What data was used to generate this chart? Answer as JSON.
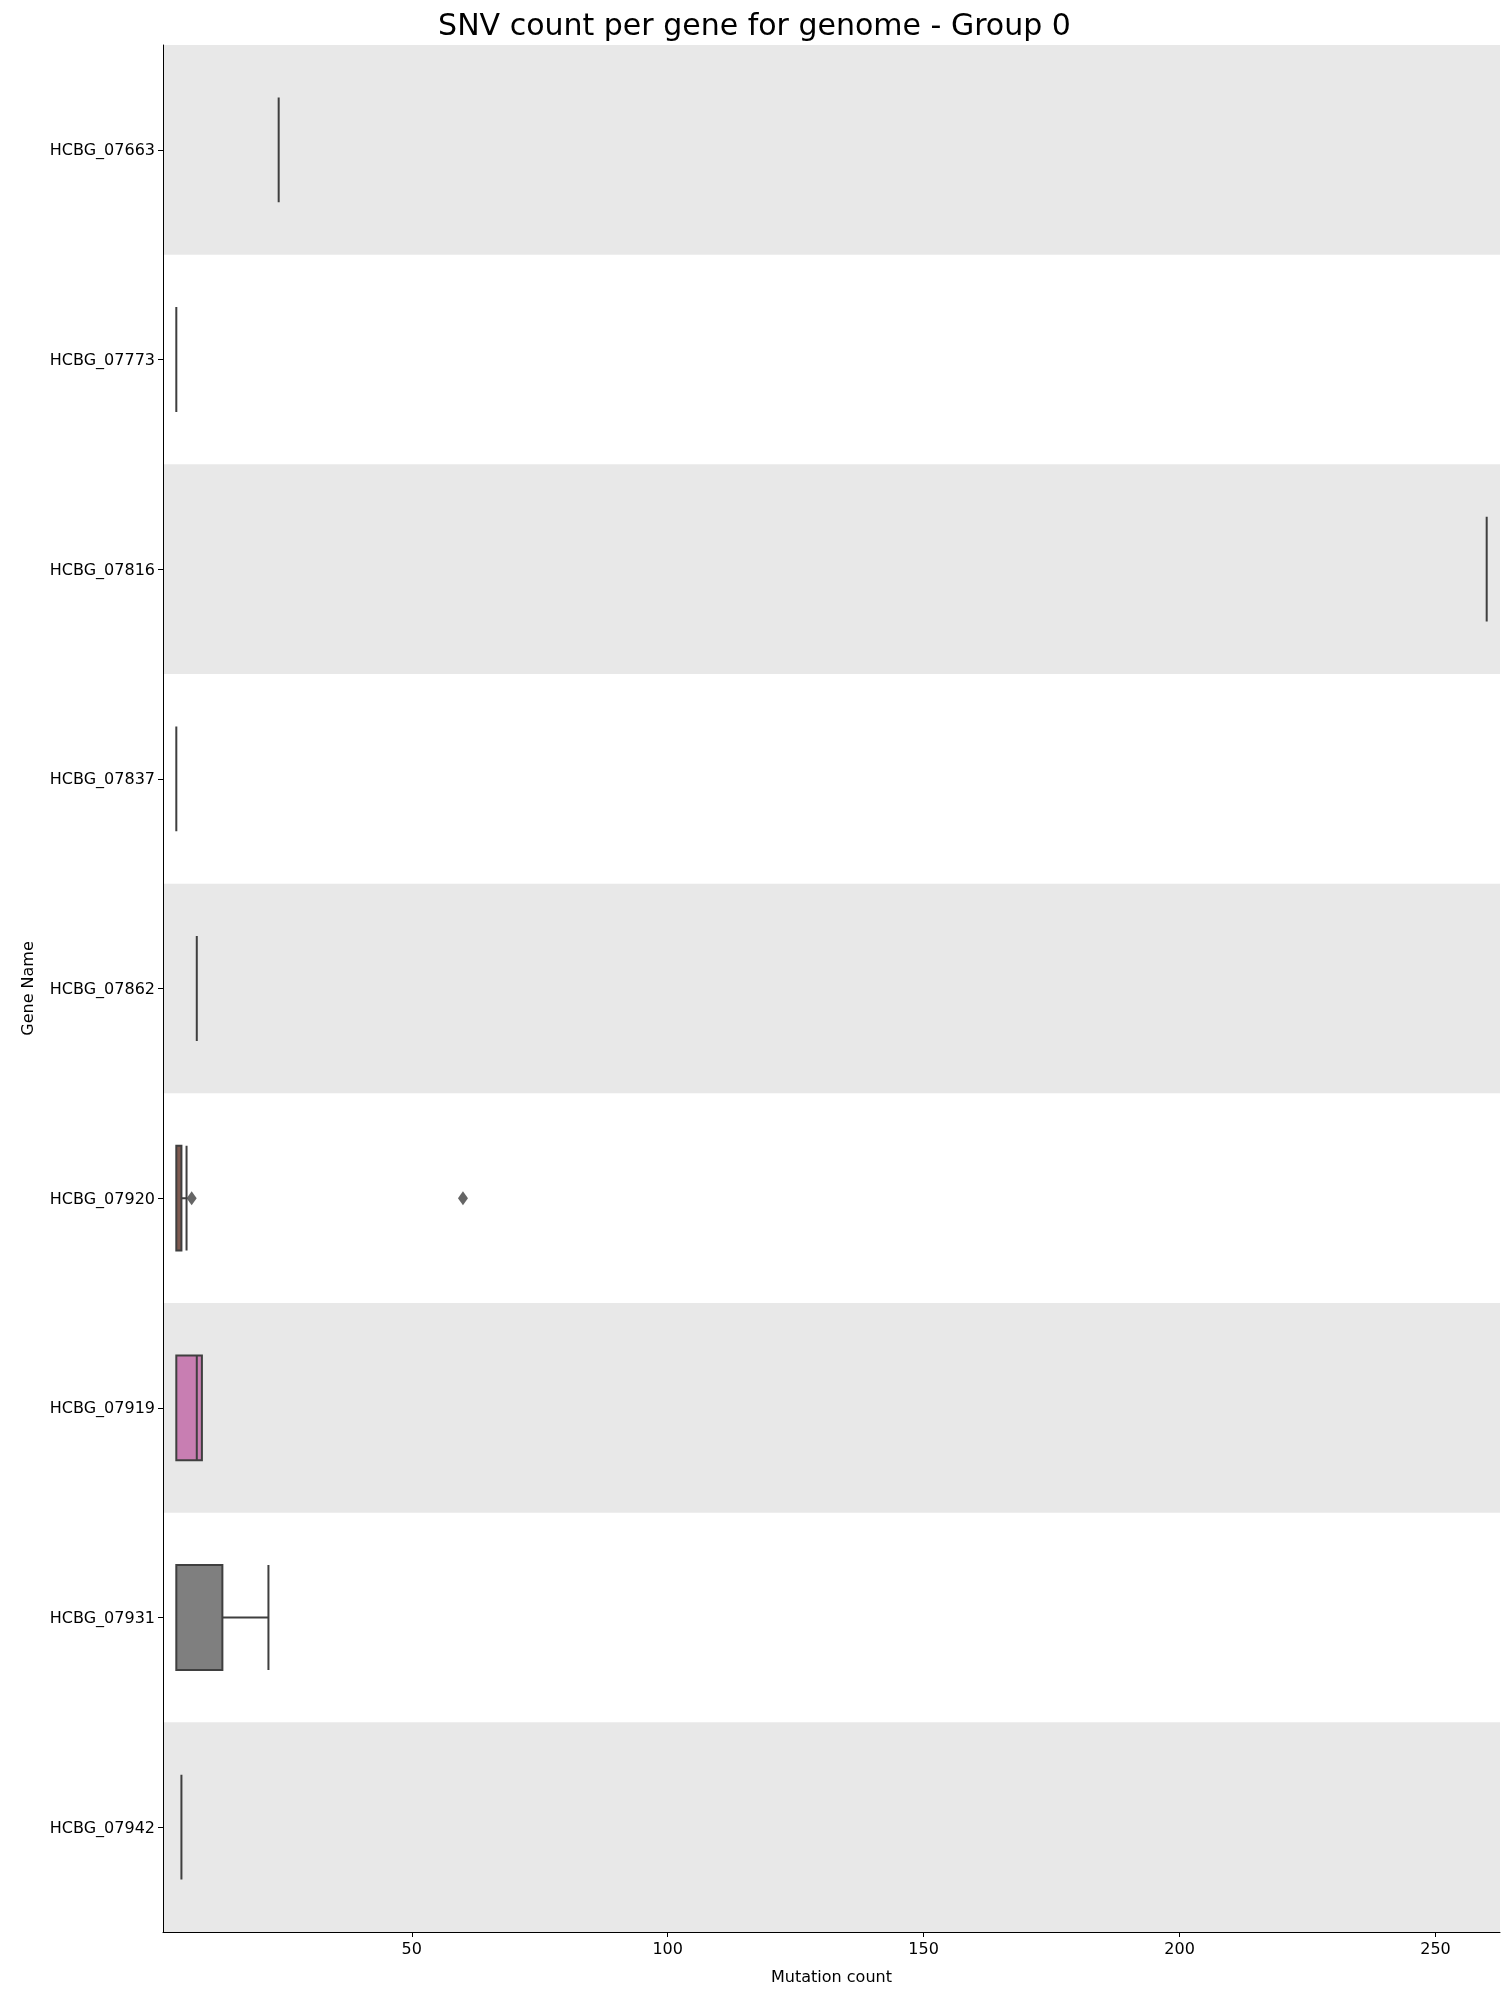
{
  "chart_data": {
    "type": "box",
    "orientation": "horizontal",
    "title": "SNV count per gene for genome - Group 0",
    "xlabel": "Mutation count",
    "ylabel": "Gene Name",
    "categories": [
      "HCBG_07663",
      "HCBG_07773",
      "HCBG_07816",
      "HCBG_07837",
      "HCBG_07862",
      "HCBG_07920",
      "HCBG_07919",
      "HCBG_07931",
      "HCBG_07942"
    ],
    "boxes": [
      {
        "low": 24,
        "q1": 24,
        "median": 24,
        "q3": 24,
        "high": 24
      },
      {
        "low": 4,
        "q1": 4,
        "median": 4,
        "q3": 4,
        "high": 4
      },
      {
        "low": 260,
        "q1": 260,
        "median": 260,
        "q3": 260,
        "high": 260
      },
      {
        "low": 4,
        "q1": 4,
        "median": 4,
        "q3": 4,
        "high": 4
      },
      {
        "low": 8,
        "q1": 8,
        "median": 8,
        "q3": 8,
        "high": 8
      },
      {
        "low": 4,
        "q1": 4,
        "median": 4,
        "q3": 5,
        "high": 6,
        "outliers": [
          7,
          60
        ]
      },
      {
        "low": 4,
        "q1": 4,
        "median": 8,
        "q3": 9,
        "high": 9
      },
      {
        "low": 4,
        "q1": 4,
        "median": 4,
        "q3": 13,
        "high": 22
      },
      {
        "low": 5,
        "q1": 5,
        "median": 5,
        "q3": 5,
        "high": 5
      }
    ],
    "colors": [
      null,
      null,
      null,
      null,
      null,
      "#7e5a50",
      "#c87eb2",
      "#7f7f7f",
      null
    ],
    "xlim": [
      1.4,
      262.6
    ],
    "xticks": [
      50,
      100,
      150,
      200,
      250
    ],
    "marker": "diamond"
  }
}
